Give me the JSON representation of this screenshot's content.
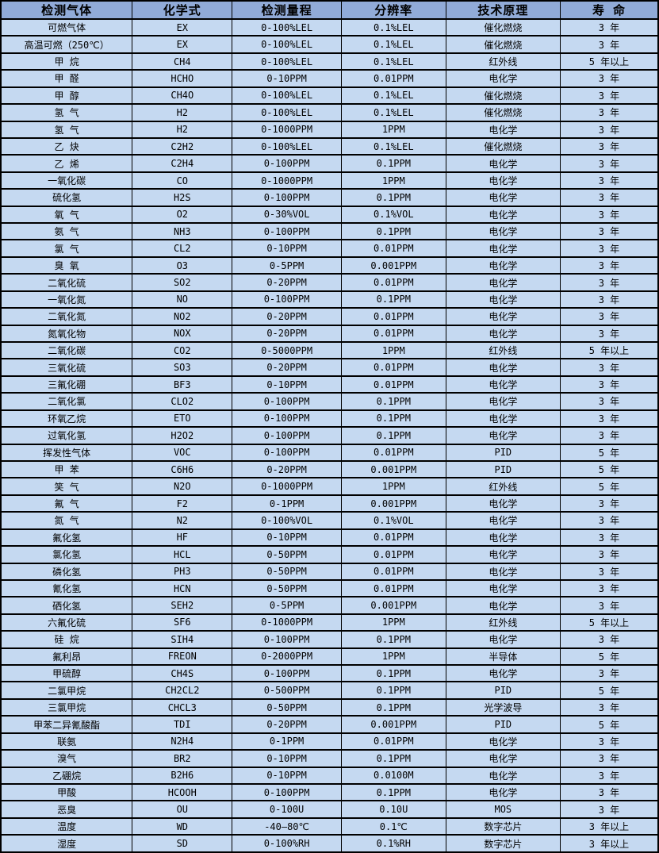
{
  "colors": {
    "header_bg": "#91ABD8",
    "row_bg": "#C5D9F1",
    "border": "#000000",
    "text": "#000000"
  },
  "table": {
    "columns": [
      "检测气体",
      "化学式",
      "检测量程",
      "分辨率",
      "技术原理",
      "寿 命"
    ],
    "column_keys": [
      "gas",
      "formula",
      "range",
      "resolution",
      "principle",
      "lifespan"
    ],
    "rows": [
      [
        "可燃气体",
        "EX",
        "0-100%LEL",
        "0.1%LEL",
        "催化燃烧",
        "3 年"
      ],
      [
        "高温可燃（250℃）",
        "EX",
        "0-100%LEL",
        "0.1%LEL",
        "催化燃烧",
        "3 年"
      ],
      [
        "甲 烷",
        "CH4",
        "0-100%LEL",
        "0.1%LEL",
        "红外线",
        "5 年以上"
      ],
      [
        "甲 醛",
        "HCHO",
        "0-10PPM",
        "0.01PPM",
        "电化学",
        "3 年"
      ],
      [
        "甲 醇",
        "CH4O",
        "0-100%LEL",
        "0.1%LEL",
        "催化燃烧",
        "3 年"
      ],
      [
        "氢 气",
        "H2",
        "0-100%LEL",
        "0.1%LEL",
        "催化燃烧",
        "3 年"
      ],
      [
        "氢 气",
        "H2",
        "0-1000PPM",
        "1PPM",
        "电化学",
        "3 年"
      ],
      [
        "乙 炔",
        "C2H2",
        "0-100%LEL",
        "0.1%LEL",
        "催化燃烧",
        "3 年"
      ],
      [
        "乙 烯",
        "C2H4",
        "0-100PPM",
        "0.1PPM",
        "电化学",
        "3 年"
      ],
      [
        "一氧化碳",
        "CO",
        "0-1000PPM",
        "1PPM",
        "电化学",
        "3 年"
      ],
      [
        "硫化氢",
        "H2S",
        "0-100PPM",
        "0.1PPM",
        "电化学",
        "3 年"
      ],
      [
        "氧 气",
        "O2",
        "0-30%VOL",
        "0.1%VOL",
        "电化学",
        "3 年"
      ],
      [
        "氨 气",
        "NH3",
        "0-100PPM",
        "0.1PPM",
        "电化学",
        "3 年"
      ],
      [
        "氯 气",
        "CL2",
        "0-10PPM",
        "0.01PPM",
        "电化学",
        "3 年"
      ],
      [
        "臭 氧",
        "O3",
        "0-5PPM",
        "0.001PPM",
        "电化学",
        "3 年"
      ],
      [
        "二氧化硫",
        "SO2",
        "0-20PPM",
        "0.01PPM",
        "电化学",
        "3 年"
      ],
      [
        "一氧化氮",
        "NO",
        "0-100PPM",
        "0.1PPM",
        "电化学",
        "3 年"
      ],
      [
        "二氧化氮",
        "NO2",
        "0-20PPM",
        "0.01PPM",
        "电化学",
        "3 年"
      ],
      [
        "氮氧化物",
        "NOX",
        "0-20PPM",
        "0.01PPM",
        "电化学",
        "3 年"
      ],
      [
        "二氧化碳",
        "CO2",
        "0-5000PPM",
        "1PPM",
        "红外线",
        "5 年以上"
      ],
      [
        "三氧化硫",
        "SO3",
        "0-20PPM",
        "0.01PPM",
        "电化学",
        "3 年"
      ],
      [
        "三氟化硼",
        "BF3",
        "0-10PPM",
        "0.01PPM",
        "电化学",
        "3 年"
      ],
      [
        "二氧化氯",
        "CLO2",
        "0-100PPM",
        "0.1PPM",
        "电化学",
        "3 年"
      ],
      [
        "环氧乙烷",
        "ETO",
        "0-100PPM",
        "0.1PPM",
        "电化学",
        "3 年"
      ],
      [
        "过氧化氢",
        "H2O2",
        "0-100PPM",
        "0.1PPM",
        "电化学",
        "3 年"
      ],
      [
        "挥发性气体",
        "VOC",
        "0-100PPM",
        "0.01PPM",
        "PID",
        "5 年"
      ],
      [
        "甲 苯",
        "C6H6",
        "0-20PPM",
        "0.001PPM",
        "PID",
        "5 年"
      ],
      [
        "笑 气",
        "N2O",
        "0-1000PPM",
        "1PPM",
        "红外线",
        "5 年"
      ],
      [
        "氟 气",
        "F2",
        "0-1PPM",
        "0.001PPM",
        "电化学",
        "3 年"
      ],
      [
        "氮 气",
        "N2",
        "0-100%VOL",
        "0.1%VOL",
        "电化学",
        "3 年"
      ],
      [
        "氟化氢",
        "HF",
        "0-10PPM",
        "0.01PPM",
        "电化学",
        "3 年"
      ],
      [
        "氯化氢",
        "HCL",
        "0-50PPM",
        "0.01PPM",
        "电化学",
        "3 年"
      ],
      [
        "磷化氢",
        "PH3",
        "0-50PPM",
        "0.01PPM",
        "电化学",
        "3 年"
      ],
      [
        "氰化氢",
        "HCN",
        "0-50PPM",
        "0.01PPM",
        "电化学",
        "3 年"
      ],
      [
        "硒化氢",
        "SEH2",
        "0-5PPM",
        "0.001PPM",
        "电化学",
        "3 年"
      ],
      [
        "六氟化硫",
        "SF6",
        "0-1000PPM",
        "1PPM",
        "红外线",
        "5 年以上"
      ],
      [
        "硅 烷",
        "SIH4",
        "0-100PPM",
        "0.1PPM",
        "电化学",
        "3 年"
      ],
      [
        "氟利昂",
        "FREON",
        "0-2000PPM",
        "1PPM",
        "半导体",
        "5 年"
      ],
      [
        "甲硫醇",
        "CH4S",
        "0-100PPM",
        "0.1PPM",
        "电化学",
        "3 年"
      ],
      [
        "二氯甲烷",
        "CH2CL2",
        "0-500PPM",
        "0.1PPM",
        "PID",
        "5 年"
      ],
      [
        "三氯甲烷",
        "CHCL3",
        "0-50PPM",
        "0.1PPM",
        "光学波导",
        "3 年"
      ],
      [
        "甲苯二异氰酸酯",
        "TDI",
        "0-20PPM",
        "0.001PPM",
        "PID",
        "5 年"
      ],
      [
        "联氨",
        "N2H4",
        "0-1PPM",
        "0.01PPM",
        "电化学",
        "3 年"
      ],
      [
        "溴气",
        "BR2",
        "0-10PPM",
        "0.1PPM",
        "电化学",
        "3 年"
      ],
      [
        "乙硼烷",
        "B2H6",
        "0-10PPM",
        "0.0100M",
        "电化学",
        "3 年"
      ],
      [
        "甲酸",
        "HCOOH",
        "0-100PPM",
        "0.1PPM",
        "电化学",
        "3 年"
      ],
      [
        "恶臭",
        "OU",
        "0-100U",
        "0.10U",
        "MOS",
        "3 年"
      ],
      [
        "温度",
        "WD",
        "-40—80℃",
        "0.1℃",
        "数字芯片",
        "3 年以上"
      ],
      [
        "湿度",
        "SD",
        "0-100%RH",
        "0.1%RH",
        "数字芯片",
        "3 年以上"
      ]
    ]
  }
}
